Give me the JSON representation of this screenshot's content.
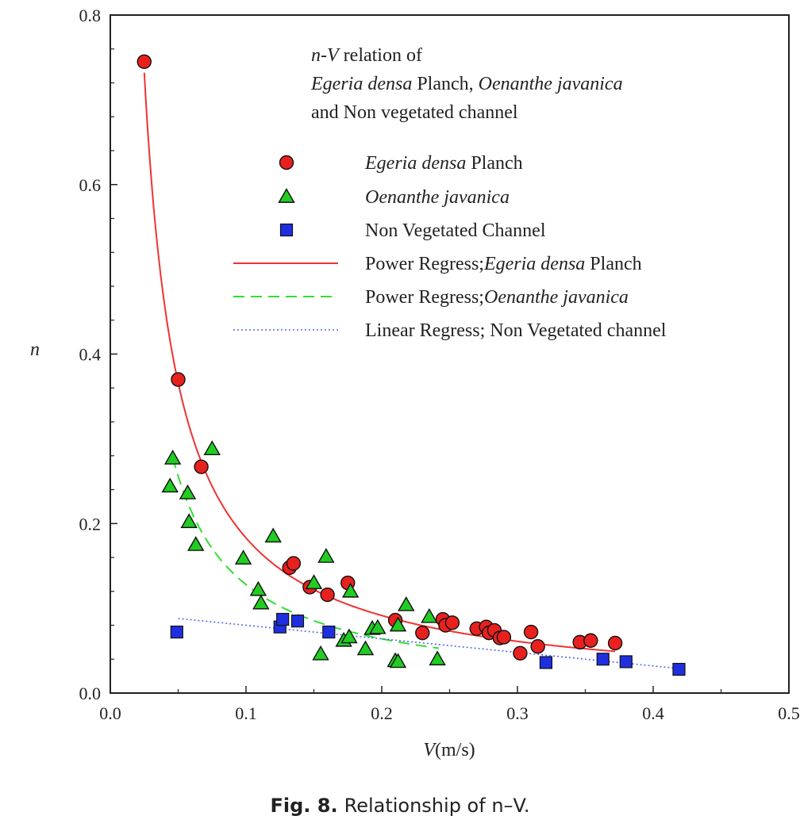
{
  "caption": {
    "label": "Fig. 8.",
    "text": "Relationship of n–V."
  },
  "chart_data": {
    "type": "scatter",
    "xlabel": "V(m/s)",
    "ylabel": "n",
    "xlim": [
      0.0,
      0.5
    ],
    "ylim": [
      0.0,
      0.8
    ],
    "x_ticks": [
      "0.0",
      "0.1",
      "0.2",
      "0.3",
      "0.4",
      "0.5"
    ],
    "y_ticks": [
      "0.0",
      "0.2",
      "0.4",
      "0.6",
      "0.8"
    ],
    "annotation": [
      "n-V relation of",
      "Egeria densa Planch, Oenanthe javanica",
      "and Non vegetated channel"
    ],
    "legend": [
      "Egeria densa Planch",
      "Oenanthe javanica",
      "Non Vegetated Channel",
      "Power Regress;Egeria densa Planch",
      "Power Regress;Oenanthe javanica",
      "Linear Regress; Non Vegetated channel"
    ],
    "colors": {
      "egeria": "#e8211f",
      "oenanthe": "#22cc22",
      "nonveg": "#1f2fe0",
      "egeria_fit": "#ee3333",
      "oenanthe_fit": "#33dd33",
      "nonveg_fit": "#5566ee"
    },
    "series": [
      {
        "marker": "circle",
        "points": [
          [
            0.025,
            0.745
          ],
          [
            0.05,
            0.37
          ],
          [
            0.067,
            0.267
          ],
          [
            0.132,
            0.148
          ],
          [
            0.135,
            0.153
          ],
          [
            0.147,
            0.125
          ],
          [
            0.16,
            0.116
          ],
          [
            0.175,
            0.13
          ],
          [
            0.21,
            0.086
          ],
          [
            0.23,
            0.071
          ],
          [
            0.245,
            0.087
          ],
          [
            0.247,
            0.08
          ],
          [
            0.252,
            0.083
          ],
          [
            0.27,
            0.076
          ],
          [
            0.277,
            0.078
          ],
          [
            0.279,
            0.071
          ],
          [
            0.283,
            0.074
          ],
          [
            0.287,
            0.065
          ],
          [
            0.29,
            0.066
          ],
          [
            0.302,
            0.047
          ],
          [
            0.31,
            0.072
          ],
          [
            0.315,
            0.055
          ],
          [
            0.346,
            0.06
          ],
          [
            0.354,
            0.062
          ],
          [
            0.372,
            0.059
          ]
        ]
      },
      {
        "marker": "triangle",
        "points": [
          [
            0.044,
            0.244
          ],
          [
            0.046,
            0.277
          ],
          [
            0.057,
            0.236
          ],
          [
            0.058,
            0.202
          ],
          [
            0.063,
            0.175
          ],
          [
            0.075,
            0.288
          ],
          [
            0.098,
            0.159
          ],
          [
            0.109,
            0.122
          ],
          [
            0.111,
            0.106
          ],
          [
            0.12,
            0.185
          ],
          [
            0.15,
            0.13
          ],
          [
            0.155,
            0.046
          ],
          [
            0.159,
            0.161
          ],
          [
            0.172,
            0.062
          ],
          [
            0.176,
            0.066
          ],
          [
            0.177,
            0.12
          ],
          [
            0.188,
            0.052
          ],
          [
            0.193,
            0.076
          ],
          [
            0.197,
            0.077
          ],
          [
            0.21,
            0.038
          ],
          [
            0.212,
            0.037
          ],
          [
            0.212,
            0.08
          ],
          [
            0.218,
            0.104
          ],
          [
            0.235,
            0.09
          ],
          [
            0.241,
            0.04
          ]
        ]
      },
      {
        "marker": "square",
        "points": [
          [
            0.049,
            0.072
          ],
          [
            0.125,
            0.078
          ],
          [
            0.127,
            0.087
          ],
          [
            0.138,
            0.085
          ],
          [
            0.161,
            0.072
          ],
          [
            0.321,
            0.036
          ],
          [
            0.363,
            0.04
          ],
          [
            0.38,
            0.037
          ],
          [
            0.419,
            0.028
          ]
        ]
      }
    ],
    "fits": [
      {
        "kind": "power",
        "a": 0.0183,
        "b": -1.0,
        "xrange": [
          0.025,
          0.372
        ],
        "style": "solid"
      },
      {
        "kind": "power",
        "a": 0.0128,
        "b": -1.0,
        "xrange": [
          0.046,
          0.242
        ],
        "style": "dashed"
      },
      {
        "kind": "linear",
        "slope": -0.16,
        "intercept": 0.096,
        "xrange": [
          0.05,
          0.42
        ],
        "style": "dotted"
      }
    ]
  }
}
